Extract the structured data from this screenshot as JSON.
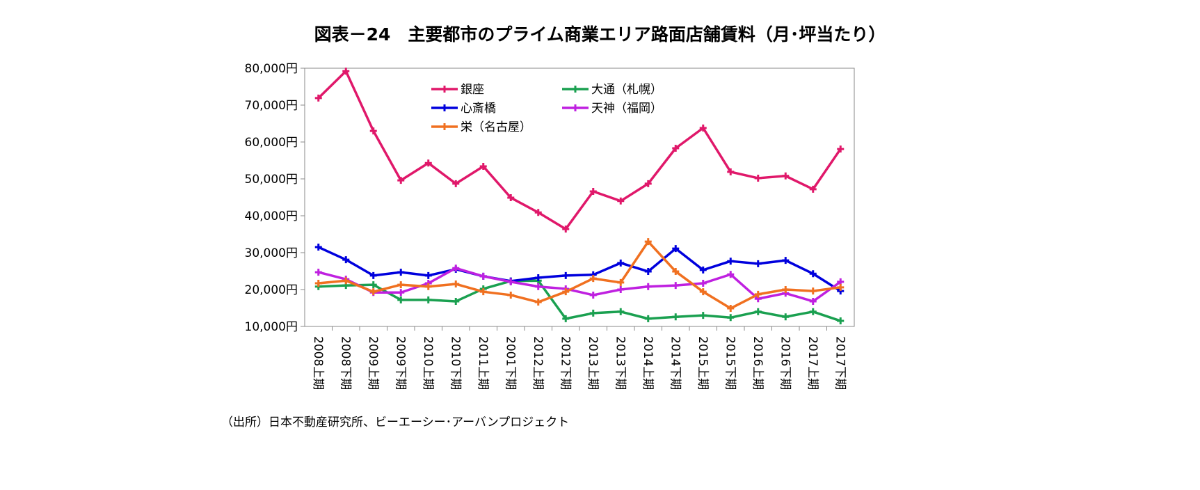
{
  "chart_data": {
    "type": "line",
    "title": "図表－24　主要都市のプライム商業エリア路面店舗賃料（月･坪当たり）",
    "xlabel": "",
    "ylabel": "",
    "ylim": [
      10000,
      80000
    ],
    "yticks": [
      "10,000円",
      "20,000円",
      "30,000円",
      "40,000円",
      "50,000円",
      "60,000円",
      "70,000円",
      "80,000円"
    ],
    "grid": false,
    "legend_position": "top-center",
    "categories": [
      "2008上期",
      "2008下期",
      "2009上期",
      "2009下期",
      "2010上期",
      "2010下期",
      "2011上期",
      "2001下期",
      "2012上期",
      "2012下期",
      "2013上期",
      "2013下期",
      "2014上期",
      "2014下期",
      "2015上期",
      "2015下期",
      "2016上期",
      "2016下期",
      "2017上期",
      "2017下期"
    ],
    "series": [
      {
        "name": "銀座",
        "color": "#E0186A",
        "values": [
          71900,
          79200,
          63000,
          49600,
          54300,
          48700,
          53400,
          44900,
          40900,
          36400,
          46600,
          44000,
          48700,
          58300,
          63800,
          51900,
          50200,
          50800,
          47200,
          58100
        ]
      },
      {
        "name": "大通（札幌）",
        "color": "#1AA050",
        "values": [
          20800,
          21100,
          21300,
          17200,
          17200,
          16800,
          20200,
          22300,
          22400,
          12100,
          13600,
          14000,
          12100,
          12600,
          13000,
          12400,
          14000,
          12600,
          14000,
          11500
        ]
      },
      {
        "name": "心斎橋",
        "color": "#0000DD",
        "values": [
          31500,
          28100,
          23800,
          24700,
          23800,
          25500,
          23600,
          22300,
          23200,
          23800,
          24000,
          27200,
          24900,
          31100,
          25300,
          27700,
          27000,
          27900,
          24300,
          19600
        ]
      },
      {
        "name": "天神（福岡）",
        "color": "#BF20E0",
        "values": [
          24700,
          22800,
          19200,
          19200,
          21700,
          25800,
          23600,
          22100,
          20800,
          20200,
          18500,
          20000,
          20800,
          21100,
          21700,
          24100,
          17500,
          19000,
          16800,
          22100
        ]
      },
      {
        "name": "栄（名古屋）",
        "color": "#F07020",
        "values": [
          21700,
          22400,
          19400,
          21300,
          20800,
          21500,
          19400,
          18500,
          16600,
          19400,
          23000,
          21900,
          33000,
          24900,
          19400,
          14900,
          18700,
          20000,
          19600,
          20600
        ]
      }
    ],
    "source": "（出所）日本不動産研究所、ビーエーシー･アーバンプロジェクト"
  }
}
